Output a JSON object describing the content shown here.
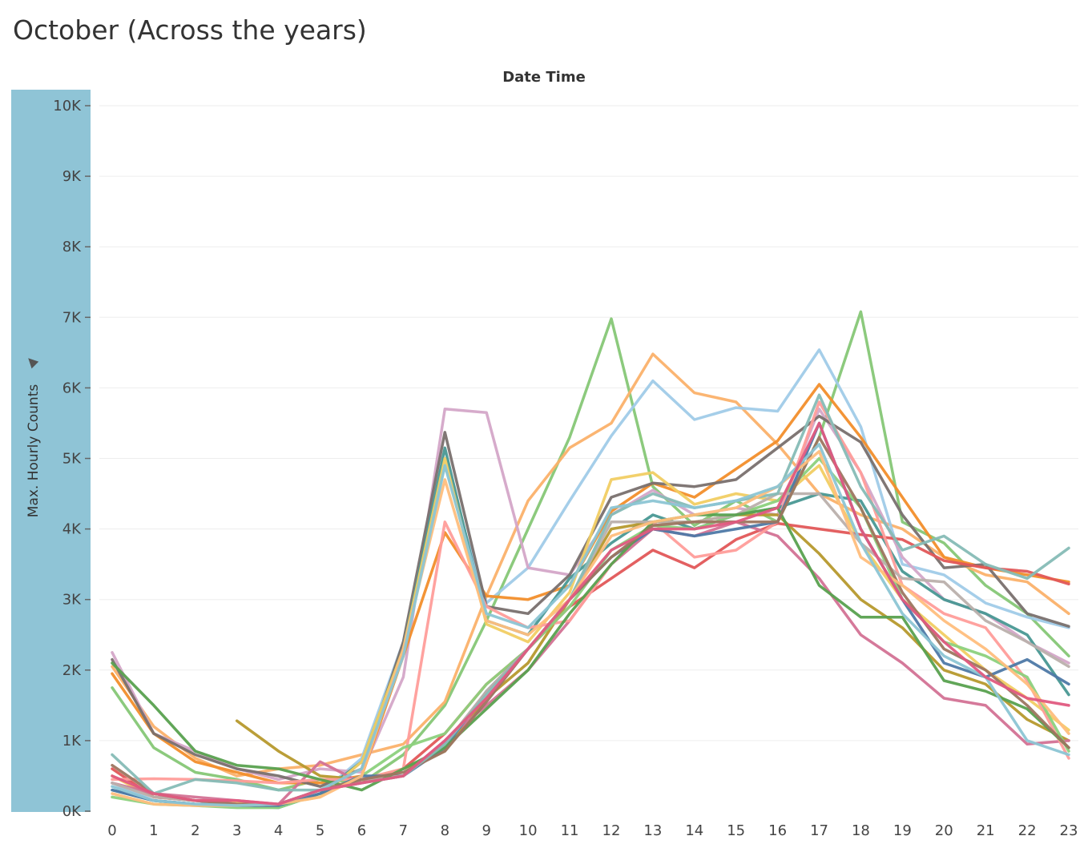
{
  "title": "October (Across the years)",
  "chart_data": {
    "type": "line",
    "column_header": "Date Time",
    "ylabel": "Max. Hourly Counts",
    "x": [
      0,
      1,
      2,
      3,
      4,
      5,
      6,
      7,
      8,
      9,
      10,
      11,
      12,
      13,
      14,
      15,
      16,
      17,
      18,
      19,
      20,
      21,
      22,
      23
    ],
    "xticks": [
      "0",
      "1",
      "2",
      "3",
      "4",
      "5",
      "6",
      "7",
      "8",
      "9",
      "10",
      "11",
      "12",
      "13",
      "14",
      "15",
      "16",
      "17",
      "18",
      "19",
      "20",
      "21",
      "22",
      "23"
    ],
    "yticks": [
      {
        "value": 0,
        "label": "0K"
      },
      {
        "value": 1000,
        "label": "1K"
      },
      {
        "value": 2000,
        "label": "2K"
      },
      {
        "value": 3000,
        "label": "3K"
      },
      {
        "value": 4000,
        "label": "4K"
      },
      {
        "value": 5000,
        "label": "5K"
      },
      {
        "value": 6000,
        "label": "6K"
      },
      {
        "value": 7000,
        "label": "7K"
      },
      {
        "value": 8000,
        "label": "8K"
      },
      {
        "value": 9000,
        "label": "9K"
      },
      {
        "value": 10000,
        "label": "10K"
      }
    ],
    "ylim": [
      0,
      10000
    ],
    "xlim": [
      0,
      23
    ],
    "grid": true,
    "series": [
      {
        "color": "#86c776",
        "values": [
          1750,
          900,
          550,
          450,
          300,
          450,
          400,
          800,
          1500,
          2700,
          4000,
          5300,
          6980,
          4600,
          4050,
          4400,
          4100,
          5300,
          7080,
          4100,
          3800,
          3200,
          2800,
          2200
        ]
      },
      {
        "color": "#fbb16a",
        "values": [
          2050,
          1200,
          750,
          500,
          600,
          650,
          800,
          950,
          1550,
          3050,
          4400,
          5150,
          5500,
          6480,
          5930,
          5800,
          5200,
          4500,
          4200,
          4000,
          3600,
          3350,
          3250,
          2800
        ]
      },
      {
        "color": "#a0cbe8",
        "values": [
          400,
          150,
          100,
          80,
          50,
          250,
          750,
          2400,
          4900,
          2950,
          3450,
          4400,
          5320,
          6100,
          5550,
          5720,
          5670,
          6540,
          5450,
          3500,
          3350,
          2950,
          2750,
          2600
        ]
      },
      {
        "color": "#d4a6c8",
        "values": [
          2250,
          1100,
          850,
          600,
          450,
          600,
          550,
          1900,
          5700,
          5650,
          3450,
          3350,
          4200,
          4550,
          4200,
          4300,
          4200,
          5700,
          4800,
          3600,
          3000,
          2800,
          2400,
          2100
        ]
      },
      {
        "color": "#f28e2b",
        "values": [
          1950,
          1100,
          700,
          550,
          400,
          400,
          500,
          2200,
          3950,
          3050,
          3000,
          3200,
          4250,
          4650,
          4450,
          4850,
          5250,
          6050,
          5300,
          4450,
          3600,
          3450,
          3350,
          3250
        ]
      },
      {
        "color": "#79706e",
        "values": [
          2150,
          1100,
          800,
          600,
          500,
          350,
          600,
          2400,
          5370,
          2900,
          2800,
          3350,
          4450,
          4650,
          4600,
          4700,
          5150,
          5600,
          5230,
          4200,
          3450,
          3500,
          2800,
          2620
        ]
      },
      {
        "color": "#499894",
        "values": [
          300,
          150,
          100,
          80,
          50,
          250,
          700,
          2300,
          5150,
          2700,
          2500,
          3300,
          3800,
          4200,
          4000,
          4200,
          4300,
          4500,
          4400,
          3400,
          3000,
          2800,
          2500,
          1650
        ]
      },
      {
        "color": "#f1ce63",
        "values": [
          500,
          200,
          150,
          120,
          100,
          200,
          700,
          2300,
          5000,
          2650,
          2400,
          3100,
          4700,
          4800,
          4350,
          4500,
          4400,
          4900,
          3800,
          3000,
          2500,
          2000,
          1600,
          1150
        ]
      },
      {
        "color": "#b6992d",
        "values": [
          null,
          null,
          null,
          1280,
          850,
          500,
          450,
          600,
          850,
          1600,
          2100,
          3000,
          4000,
          4100,
          4100,
          4200,
          4200,
          3650,
          3000,
          2600,
          2000,
          1800,
          1300,
          1000
        ]
      },
      {
        "color": "#e15759",
        "values": [
          600,
          200,
          150,
          100,
          100,
          300,
          400,
          600,
          1100,
          1800,
          2300,
          2900,
          3300,
          3700,
          3450,
          3850,
          4080,
          4000,
          3920,
          3850,
          3550,
          3450,
          3400,
          3220
        ]
      },
      {
        "color": "#d37295",
        "values": [
          400,
          250,
          200,
          150,
          100,
          700,
          400,
          500,
          1000,
          1500,
          2000,
          2700,
          3500,
          4000,
          3900,
          4100,
          3900,
          3300,
          2500,
          2100,
          1600,
          1500,
          950,
          1000
        ]
      },
      {
        "color": "#ff9d9a",
        "values": [
          450,
          460,
          450,
          430,
          400,
          450,
          450,
          600,
          4100,
          2900,
          2600,
          2700,
          3500,
          4100,
          3600,
          3700,
          4100,
          5800,
          4800,
          3200,
          2800,
          2600,
          1850,
          750
        ]
      },
      {
        "color": "#8cd17d",
        "values": [
          200,
          100,
          80,
          50,
          50,
          250,
          500,
          900,
          1100,
          1800,
          2300,
          2900,
          3700,
          4050,
          4000,
          4200,
          4400,
          5000,
          4300,
          3000,
          2400,
          2200,
          1900,
          850
        ]
      },
      {
        "color": "#4e79a7",
        "values": [
          300,
          150,
          100,
          80,
          80,
          250,
          500,
          500,
          900,
          1700,
          2300,
          3000,
          3600,
          4000,
          3900,
          4000,
          4100,
          5500,
          4000,
          3000,
          2100,
          1900,
          2150,
          1800
        ]
      },
      {
        "color": "#bab0ac",
        "values": [
          400,
          200,
          150,
          100,
          100,
          300,
          450,
          500,
          950,
          1700,
          2300,
          3000,
          4100,
          4100,
          4100,
          4200,
          4500,
          4500,
          3800,
          3300,
          3250,
          2700,
          2400,
          2050
        ]
      },
      {
        "color": "#59a14f",
        "values": [
          2100,
          1500,
          850,
          650,
          600,
          450,
          300,
          600,
          900,
          1450,
          2000,
          2800,
          3500,
          4100,
          4200,
          4200,
          4300,
          3200,
          2750,
          2750,
          1850,
          1700,
          1450,
          900
        ]
      },
      {
        "color": "#9d7660",
        "values": [
          650,
          250,
          150,
          100,
          100,
          300,
          450,
          550,
          850,
          1550,
          2300,
          3000,
          3600,
          4050,
          4100,
          4100,
          4100,
          5300,
          4300,
          3100,
          2300,
          2000,
          1500,
          900
        ]
      },
      {
        "color": "#86bcb6",
        "values": [
          800,
          250,
          450,
          400,
          300,
          300,
          400,
          500,
          950,
          1650,
          2300,
          3000,
          4200,
          4500,
          4300,
          4400,
          4500,
          5900,
          4600,
          3700,
          3900,
          3500,
          3300,
          3730
        ]
      },
      {
        "color": "#ffbe7d",
        "values": [
          250,
          100,
          80,
          80,
          100,
          200,
          500,
          2300,
          4700,
          2700,
          2500,
          3000,
          3900,
          4100,
          4200,
          4300,
          4600,
          5100,
          3600,
          3200,
          2700,
          2300,
          1800,
          1100
        ]
      },
      {
        "color": "#8cc5d4",
        "values": [
          350,
          150,
          100,
          80,
          100,
          300,
          600,
          2200,
          4900,
          2800,
          2600,
          3200,
          4300,
          4400,
          4300,
          4400,
          4600,
          5200,
          3800,
          2800,
          2200,
          1900,
          1000,
          800
        ]
      },
      {
        "color": "#e05a7f",
        "values": [
          500,
          250,
          150,
          150,
          100,
          300,
          400,
          500,
          1000,
          1600,
          2300,
          3000,
          3700,
          4000,
          4000,
          4100,
          4300,
          5500,
          4000,
          3000,
          2400,
          1900,
          1600,
          1500
        ]
      }
    ]
  }
}
